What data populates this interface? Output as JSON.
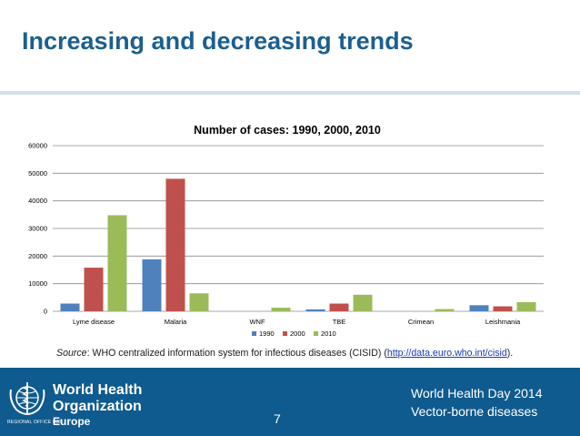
{
  "slide": {
    "title": "Increasing and decreasing trends",
    "page_number": "7"
  },
  "source": {
    "label": "Source",
    "text": ": WHO centralized information system for infectious diseases (CISID) (",
    "link": "http://data.euro.who.int/cisid",
    "end": ")."
  },
  "footer": {
    "org_line1": "World Health",
    "org_line2": "Organization",
    "region_caption": "REGIONAL OFFICE FOR",
    "region_name": "Europe",
    "event": "World Health Day 2014",
    "theme": "Vector-borne diseases"
  },
  "colors": {
    "title": "#1c5f8f",
    "footer_bg": "#0f5a8e"
  },
  "chart_data": {
    "type": "bar",
    "title": "Number of cases: 1990, 2000, 2010",
    "xlabel": "",
    "ylabel": "",
    "ylim": [
      0,
      60000
    ],
    "yticks": [
      0,
      10000,
      20000,
      30000,
      40000,
      50000,
      60000
    ],
    "grid": true,
    "legend_position": "bottom",
    "categories": [
      "Lyme disease",
      "Malaria",
      "WNF",
      "TBE",
      "Crimean",
      "Leishmania"
    ],
    "series": [
      {
        "name": "1990",
        "color": "#4f81bd",
        "values": [
          2800,
          18800,
          0,
          700,
          0,
          2200
        ]
      },
      {
        "name": "2000",
        "color": "#c0504d",
        "values": [
          15800,
          48000,
          0,
          2800,
          0,
          1800
        ]
      },
      {
        "name": "2010",
        "color": "#9bbb59",
        "values": [
          34800,
          6500,
          1300,
          6000,
          800,
          3300
        ]
      }
    ]
  }
}
